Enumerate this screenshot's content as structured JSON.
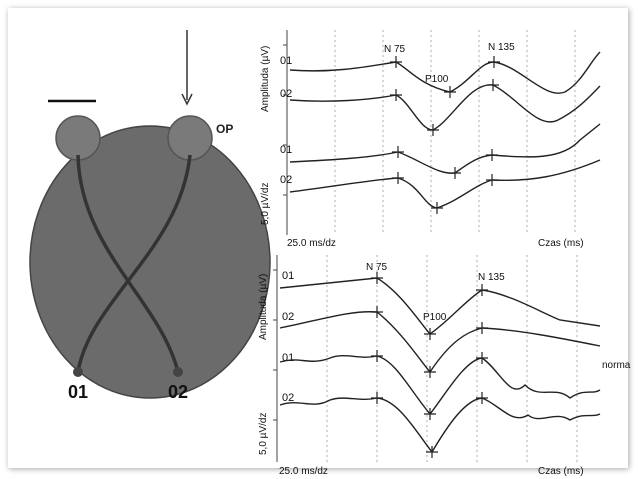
{
  "electrodes": {
    "op": "OP",
    "left": "01",
    "right": "02"
  },
  "panels": [
    {
      "y_label": "Amplituda (µV)",
      "y_scale": "5,0 µV/dz",
      "x_scale": "25.0 ms/dz",
      "x_label": "Czas (ms)",
      "traces": [
        "01",
        "02",
        "01",
        "02"
      ],
      "peaks": [
        "N 75",
        "P100",
        "N 135"
      ]
    },
    {
      "y_label": "Amplituda (µV)",
      "y_scale": "5,0 µV/dz",
      "x_scale": "25.0 ms/dz",
      "x_label": "Czas (ms)",
      "traces": [
        "01",
        "02",
        "01",
        "02"
      ],
      "peaks": [
        "N 75",
        "P100",
        "N 135"
      ],
      "note": "norma"
    }
  ]
}
